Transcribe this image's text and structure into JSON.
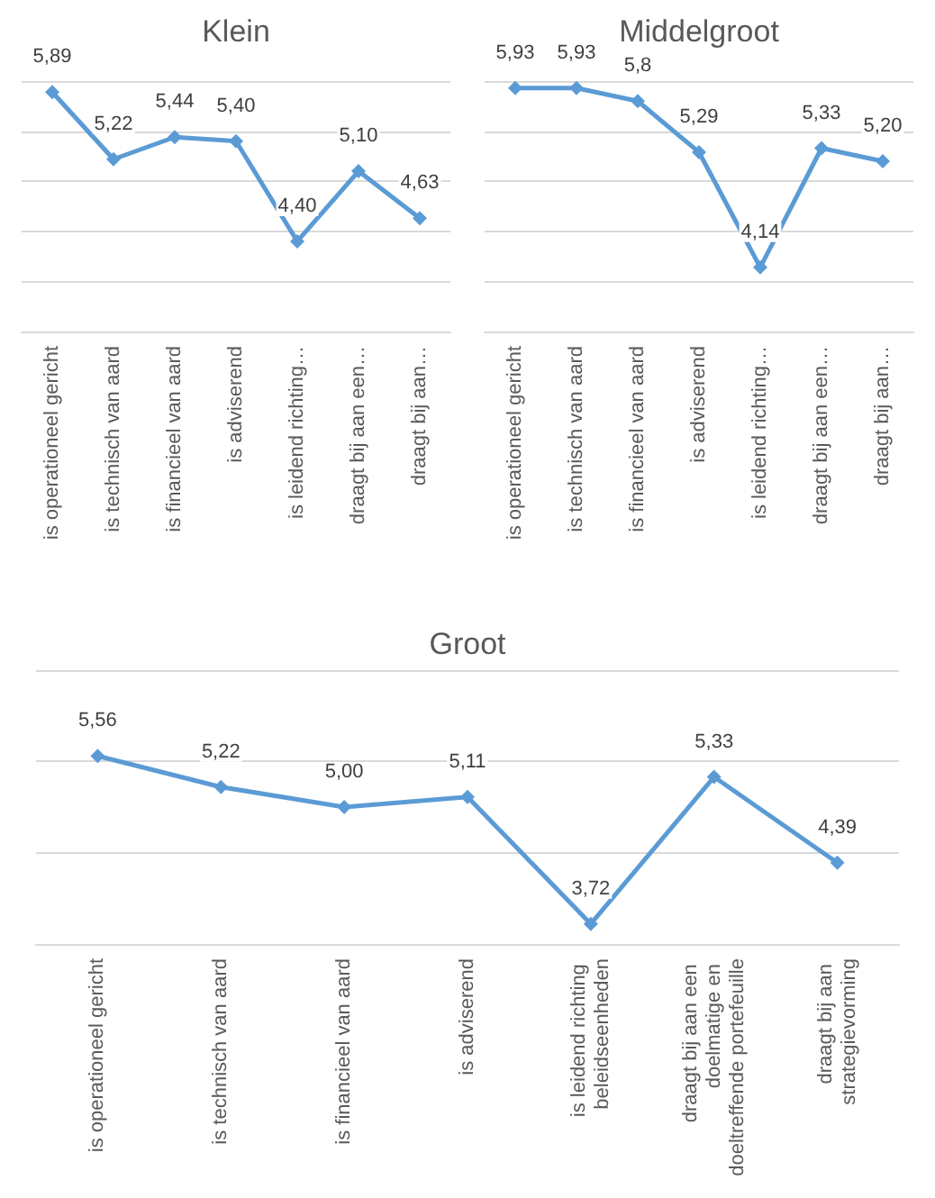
{
  "chart_data": [
    {
      "type": "line",
      "title": "Klein",
      "categories": [
        "is operationeel gericht",
        "is technisch van aard",
        "is financieel van aard",
        "is adviserend",
        "is leidend richting…",
        "draagt bij aan een…",
        "draagt bij aan…"
      ],
      "series": [
        {
          "color": "#5b9bd5",
          "values": [
            5.89,
            5.22,
            5.44,
            5.4,
            4.4,
            5.1,
            4.63
          ],
          "value_labels": [
            "5,89",
            "5,22",
            "5,44",
            "5,40",
            "4,40",
            "5,10",
            "4,63"
          ]
        }
      ],
      "ylim": [
        3.5,
        6
      ],
      "yticks": [
        {
          "value": 3.5,
          "label": null
        },
        {
          "value": 4,
          "label": null
        },
        {
          "value": 4.5,
          "label": null
        },
        {
          "value": 5,
          "label": null
        },
        {
          "value": 5.5,
          "label": null
        },
        {
          "value": 6,
          "label": null
        }
      ],
      "tick_labels": "x",
      "grid": "y",
      "marker": "diamond"
    },
    {
      "type": "line",
      "title": "Middelgroot",
      "categories": [
        "is operationeel gericht",
        "is technisch van aard",
        "is financieel van aard",
        "is adviserend",
        "is leidend richting…",
        "draagt bij aan een…",
        "draagt bij aan…"
      ],
      "series": [
        {
          "color": "#5b9bd5",
          "values": [
            5.93,
            5.93,
            5.8,
            5.29,
            4.14,
            5.33,
            5.2
          ],
          "value_labels": [
            "5,93",
            "5,93",
            "5,8",
            "5,29",
            "4,14",
            "5,33",
            "5,20"
          ]
        }
      ],
      "ylim": [
        3.5,
        6
      ],
      "yticks": [
        {
          "value": 3.5,
          "label": null
        },
        {
          "value": 4,
          "label": null
        },
        {
          "value": 4.5,
          "label": null
        },
        {
          "value": 5,
          "label": null
        },
        {
          "value": 5.5,
          "label": null
        },
        {
          "value": 6,
          "label": null
        }
      ],
      "tick_labels": "x",
      "grid": "y",
      "marker": "diamond"
    },
    {
      "type": "line",
      "title": "Groot",
      "categories": [
        "is operationeel gericht",
        "is technisch van aard",
        "is financieel van aard",
        "is adviserend",
        "is leidend richting beleidseenheden",
        "draagt bij aan een doelmatige en doeltreffende portefeuille",
        "draagt bij aan strategievorming"
      ],
      "series": [
        {
          "color": "#5b9bd5",
          "values": [
            5.56,
            5.22,
            5.0,
            5.11,
            3.72,
            5.33,
            4.39
          ],
          "value_labels": [
            "5,56",
            "5,22",
            "5,00",
            "5,11",
            "3,72",
            "5,33",
            "4,39"
          ]
        }
      ],
      "ylim": [
        3.5,
        6.5
      ],
      "yticks": [
        {
          "value": 3.5,
          "label": null
        },
        {
          "value": 4.5,
          "label": null
        },
        {
          "value": 5.5,
          "label": null
        },
        {
          "value": 6.5,
          "label": null
        }
      ],
      "tick_labels": "x",
      "grid": "y",
      "marker": "diamond"
    }
  ]
}
